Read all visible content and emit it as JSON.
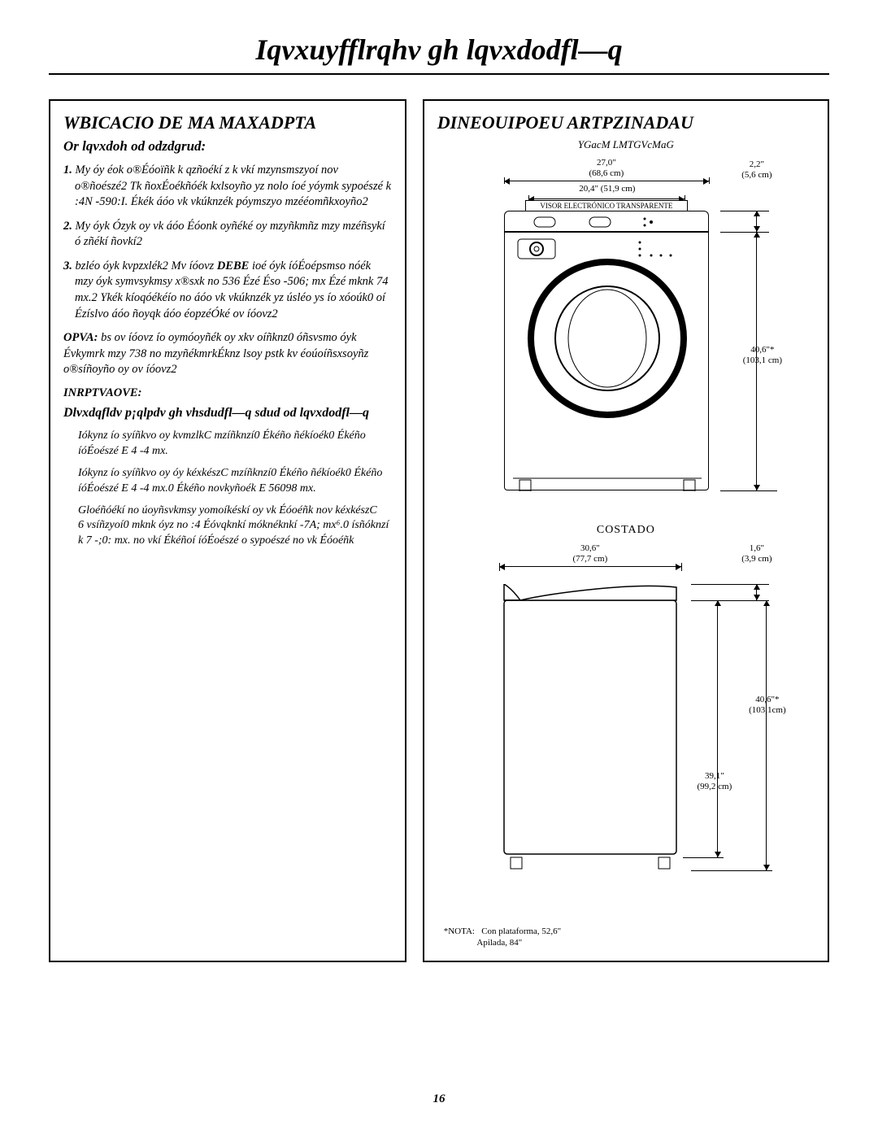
{
  "page_title": "Iqvxuyfflrqhv gh lqvxdodfl—q",
  "page_number": "16",
  "left": {
    "title": "WBICACIO DE MA MAXADPTA",
    "subtitle": "Or lqvxdoh od odzdgrud:",
    "items": [
      {
        "n": "1.",
        "text": "My óy éok o®Éóoïñk k qzñoékí z k vkí mzynsmszyoí nov o®ñoészé2 Tk ñoxÉoékñóék kxlsoyño yz nolo íoé yóymk sypoészé k :4N -590:I. Ékék áóo vk vkúknzék póymszyo mzééomñkxoyño2"
      },
      {
        "n": "2.",
        "text": "My óyk Ózyk oy vk áóo Éóonk oyñéké oy mzyñkmñz mzy mzéñsykí ó zñékí ñovkí2"
      },
      {
        "n": "3.",
        "text": "bzléo óyk kvpzxlék2 Mv íóovz DEBE ioé óyk íóÉoépsmso nóék mzy óyk symvsykmsy x®sxk no 536  Ézé Éso -506; mx Ézé mknk 74 mx.2 Ykék kíoqóékéío no áóo vk vkúknzék yz úsléo ys ío xóoúk0 oí Ézíslvo áóo ñoyqk áóo éopzéÓké ov íóovz2"
      }
    ],
    "nota_label": "OPVA:",
    "nota_text": "bs ov íóovz ío oymóoyñék oy xkv oíñknz0 óñsvsmo óyk Évkymrk mzy 738  no mzyñékmrkÉknz lsoy pstk kv éoúoíñsxsoyñz o®síñoyño oy ov íóovz2",
    "important": "INRPTVAOVE:",
    "sub2": "Dlvxdqfldv p¡qlpdv gh vhsdudfl—q sdud od lqvxdodfl—q",
    "specs": [
      "Iókynz ío syíñkvo oy kvmzlkC mzíñknzí0 Ékéño ñékíoék0 Ékéño íóÉoészé E 4 -4 mx.",
      "Iókynz ío syíñkvo oy óy kéxkészC mzíñknzí0 Ékéño ñékíoék0 Ékéño íóÉoészé E 4 -4 mx.0 Ékéño novkyñoék E 56098 mx.",
      "Gloéñóékí no úoyñsvkmsy yomoíkéskí oy vk Éóoéñk nov kéxkészC\n6 vsíñzyoí0 mknk óyz no :4 Éóvqknkí móknéknkí -7A; mx⁶.0 ísñóknzí k 7  -;0: mx. no vkí Ékéñoí íóÉoészé o sypoészé no vk Éóoéñk"
    ]
  },
  "right": {
    "title": "DINEOUIPOEU ARTPZINADAU",
    "front_header": "YGacM LMTGVcMaG",
    "side_header": "COSTADO",
    "dims": {
      "d270": "27,0\"",
      "d270cm": "(68,6 cm)",
      "d22": "2,2\"",
      "d22cm": "(5,6 cm)",
      "d204": "20,4\" (51,9 cm)",
      "visor": "VISOR ELECTRÓNICO TRANSPARENTE",
      "d406": "40,6\"*",
      "d406cm": "(103,1 cm)",
      "d406cm2": "(103,1cm)",
      "d306": "30,6\"",
      "d306cm": "(77,7 cm)",
      "d16": "1,6\"",
      "d16cm": "(3,9 cm)",
      "d391": "39,1\"",
      "d391cm": "(99,2 cm)"
    },
    "footnote_label": "*NOTA:",
    "footnote_lines": [
      "Con plataforma, 52,6\"",
      "Apilada, 84\""
    ]
  }
}
